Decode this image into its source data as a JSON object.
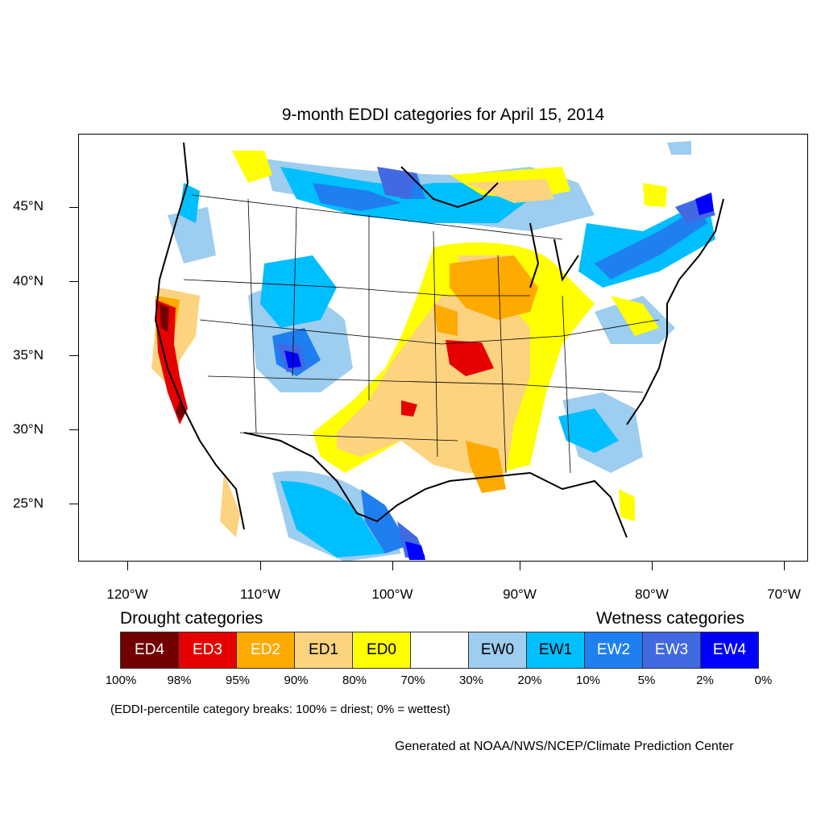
{
  "title": "9-month EDDI categories for April 15, 2014",
  "lat_labels": [
    "45°N",
    "40°N",
    "35°N",
    "30°N",
    "25°N"
  ],
  "lon_labels": [
    "120°W",
    "110°W",
    "100°W",
    "90°W",
    "80°W",
    "70°W"
  ],
  "legend": {
    "drought_heading": "Drought categories",
    "wetness_heading": "Wetness categories",
    "categories": [
      {
        "label": "ED4",
        "color": "#730000",
        "text_color": "#ffffff"
      },
      {
        "label": "ED3",
        "color": "#e60000",
        "text_color": "#ffffff"
      },
      {
        "label": "ED2",
        "color": "#ffaa00",
        "text_color": "#ffffff"
      },
      {
        "label": "ED1",
        "color": "#fcd37f",
        "text_color": "#000000"
      },
      {
        "label": "ED0",
        "color": "#ffff00",
        "text_color": "#000000"
      },
      {
        "label": "",
        "color": "#ffffff",
        "text_color": "#000000"
      },
      {
        "label": "EW0",
        "color": "#9dcdef",
        "text_color": "#000000"
      },
      {
        "label": "EW1",
        "color": "#00bfff",
        "text_color": "#000000"
      },
      {
        "label": "EW2",
        "color": "#1f7ff0",
        "text_color": "#ffffff"
      },
      {
        "label": "EW3",
        "color": "#4169e1",
        "text_color": "#ffffff"
      },
      {
        "label": "EW4",
        "color": "#0000ff",
        "text_color": "#ffffff"
      }
    ],
    "percent_breaks": [
      "100%",
      "98%",
      "95%",
      "90%",
      "80%",
      "70%",
      "30%",
      "20%",
      "10%",
      "5%",
      "2%",
      "0%"
    ]
  },
  "note": "(EDDI-percentile category breaks: 100% = driest; 0% = wettest)",
  "credit": "Generated at NOAA/NWS/NCEP/Climate Prediction Center"
}
